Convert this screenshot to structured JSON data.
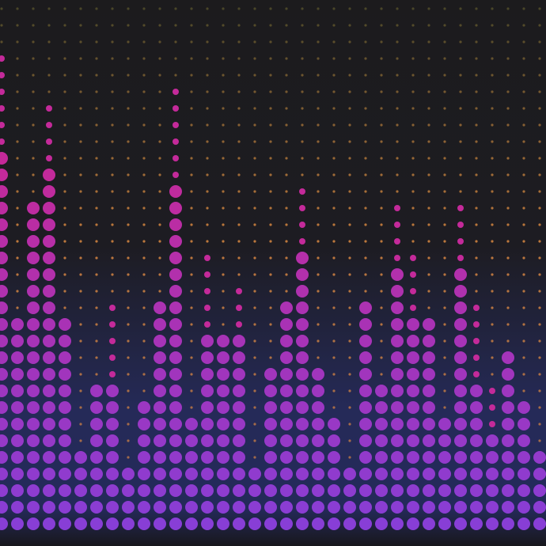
{
  "visualizer": {
    "columns": [
      {
        "level": 23,
        "peak": 6
      },
      {
        "level": 13,
        "peak": 0
      },
      {
        "level": 20,
        "peak": 0
      },
      {
        "level": 22,
        "peak": 4
      },
      {
        "level": 13,
        "peak": 0
      },
      {
        "level": 5,
        "peak": 0
      },
      {
        "level": 9,
        "peak": 0
      },
      {
        "level": 9,
        "peak": 5
      },
      {
        "level": 4,
        "peak": 0
      },
      {
        "level": 8,
        "peak": 0
      },
      {
        "level": 14,
        "peak": 0
      },
      {
        "level": 21,
        "peak": 6
      },
      {
        "level": 7,
        "peak": 0
      },
      {
        "level": 12,
        "peak": 5
      },
      {
        "level": 12,
        "peak": 0
      },
      {
        "level": 12,
        "peak": 3
      },
      {
        "level": 4,
        "peak": 0
      },
      {
        "level": 10,
        "peak": 0
      },
      {
        "level": 14,
        "peak": 0
      },
      {
        "level": 17,
        "peak": 4
      },
      {
        "level": 10,
        "peak": 0
      },
      {
        "level": 7,
        "peak": 0
      },
      {
        "level": 4,
        "peak": 0
      },
      {
        "level": 14,
        "peak": 0
      },
      {
        "level": 9,
        "peak": 0
      },
      {
        "level": 16,
        "peak": 4
      },
      {
        "level": 13,
        "peak": 4
      },
      {
        "level": 13,
        "peak": 0
      },
      {
        "level": 7,
        "peak": 0
      },
      {
        "level": 16,
        "peak": 4
      },
      {
        "level": 9,
        "peak": 5
      },
      {
        "level": 6,
        "peak": 3
      },
      {
        "level": 11,
        "peak": 0
      },
      {
        "level": 8,
        "peak": 0
      },
      {
        "level": 5,
        "peak": 0
      }
    ]
  }
}
